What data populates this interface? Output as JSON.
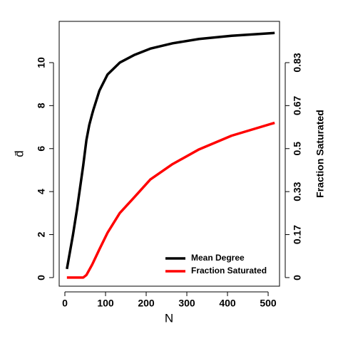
{
  "chart_data": {
    "type": "line",
    "x_label": "N",
    "y_label": "d̄",
    "y2_label": "Fraction Saturated",
    "x": [
      5,
      20,
      30,
      45,
      53,
      60,
      67,
      70,
      85,
      105,
      135,
      170,
      210,
      265,
      330,
      410,
      516
    ],
    "series": [
      {
        "name": "Mean Degree",
        "color": "#000000",
        "values": [
          0.4,
          2.0,
          3.2,
          5.2,
          6.4,
          7.1,
          7.6,
          7.8,
          8.7,
          9.45,
          10.0,
          10.35,
          10.65,
          10.9,
          11.1,
          11.25,
          11.38
        ]
      },
      {
        "name": "Fraction Saturated",
        "color": "#ff0000",
        "axis": "y2",
        "values": [
          0,
          0,
          0,
          0,
          0.01,
          0.03,
          0.05,
          0.06,
          0.11,
          0.174,
          0.25,
          0.31,
          0.38,
          0.44,
          0.497,
          0.55,
          0.6
        ]
      }
    ],
    "xlim": [
      -14,
      528
    ],
    "xticks": [
      0,
      100,
      200,
      300,
      400,
      500
    ],
    "ylim": [
      -0.4,
      11.92
    ],
    "yticks": [
      0,
      2,
      4,
      6,
      8,
      10
    ],
    "y2lim": [
      -0.0333,
      0.9933
    ],
    "y2ticks": [
      0,
      {
        "value": 0.1667,
        "label": "0.17"
      },
      {
        "value": 0.3333,
        "label": "0.33"
      },
      0.5,
      {
        "value": 0.6667,
        "label": "0.67"
      },
      {
        "value": 0.8333,
        "label": "0.83"
      }
    ],
    "legend": "bottomright",
    "grid": false
  }
}
